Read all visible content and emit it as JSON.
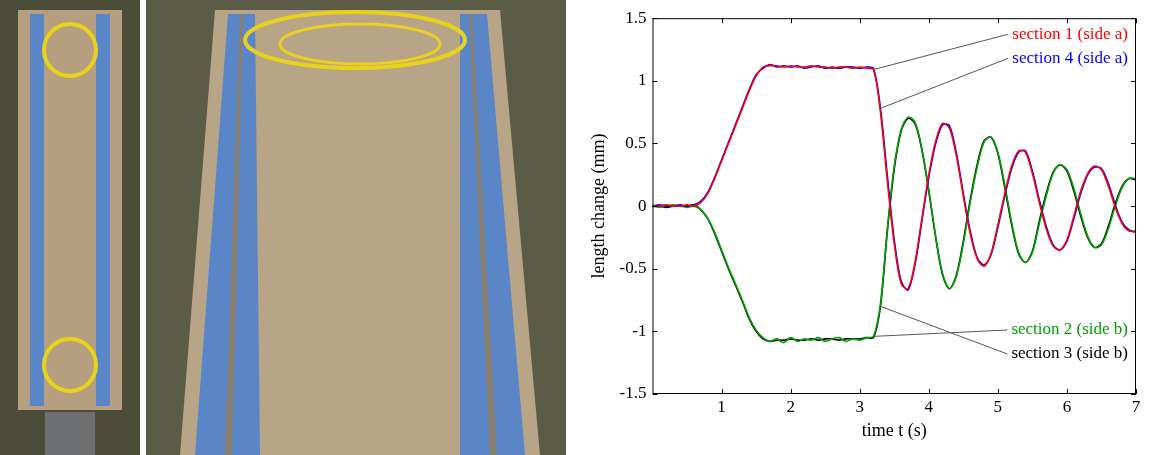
{
  "chart_data": {
    "type": "line",
    "x_label": "time t (s)",
    "y_label": "length change (mm)",
    "xlim": [
      0,
      7
    ],
    "xticks": [
      1,
      2,
      3,
      4,
      5,
      6,
      7
    ],
    "ylim": [
      -1.5,
      1.5
    ],
    "yticks": [
      -1.5,
      -1,
      -0.5,
      0,
      0.5,
      1,
      1.5
    ],
    "grid": false,
    "x": [
      0,
      0.1,
      0.2,
      0.3,
      0.4,
      0.5,
      0.6,
      0.7,
      0.8,
      0.9,
      1,
      1.1,
      1.2,
      1.3,
      1.4,
      1.5,
      1.6,
      1.7,
      1.8,
      1.9,
      2,
      2.1,
      2.2,
      2.3,
      2.4,
      2.5,
      2.6,
      2.7,
      2.8,
      2.9,
      3,
      3.1,
      3.2,
      3.3,
      3.4,
      3.5,
      3.6,
      3.7,
      3.8,
      3.9,
      4,
      4.1,
      4.2,
      4.3,
      4.4,
      4.5,
      4.6,
      4.7,
      4.8,
      4.9,
      5,
      5.1,
      5.2,
      5.3,
      5.4,
      5.5,
      5.6,
      5.7,
      5.8,
      5.9,
      6,
      6.1,
      6.2,
      6.3,
      6.4,
      6.5,
      6.6,
      6.7,
      6.8,
      6.9,
      7
    ],
    "series": [
      {
        "name": "section 1 (side a)",
        "color": "#ff0000",
        "values": [
          0,
          0,
          0.01,
          0,
          0,
          0.01,
          0,
          0.03,
          0.1,
          0.22,
          0.36,
          0.5,
          0.64,
          0.78,
          0.92,
          1.04,
          1.11,
          1.12,
          1.12,
          1.11,
          1.12,
          1.11,
          1.11,
          1.12,
          1.11,
          1.11,
          1.1,
          1.11,
          1.11,
          1.1,
          1.11,
          1.1,
          1.09,
          0.75,
          0.2,
          -0.3,
          -0.62,
          -0.66,
          -0.45,
          -0.1,
          0.25,
          0.52,
          0.66,
          0.62,
          0.4,
          0.08,
          -0.22,
          -0.42,
          -0.48,
          -0.38,
          -0.15,
          0.1,
          0.32,
          0.44,
          0.43,
          0.26,
          0.03,
          -0.18,
          -0.32,
          -0.35,
          -0.27,
          -0.08,
          0.12,
          0.26,
          0.32,
          0.29,
          0.16,
          -0.01,
          -0.14,
          -0.2,
          -0.2
        ]
      },
      {
        "name": "section 4 (side a)",
        "color": "#0000ff",
        "values": [
          0,
          0.01,
          0,
          0,
          0.01,
          0,
          0.01,
          0.04,
          0.11,
          0.23,
          0.37,
          0.51,
          0.65,
          0.79,
          0.93,
          1.05,
          1.1,
          1.13,
          1.11,
          1.12,
          1.11,
          1.12,
          1.1,
          1.11,
          1.12,
          1.1,
          1.11,
          1.1,
          1.11,
          1.11,
          1.1,
          1.11,
          1.1,
          0.78,
          0.24,
          -0.27,
          -0.6,
          -0.67,
          -0.47,
          -0.12,
          0.23,
          0.5,
          0.65,
          0.64,
          0.42,
          0.1,
          -0.2,
          -0.41,
          -0.47,
          -0.39,
          -0.17,
          0.08,
          0.3,
          0.43,
          0.44,
          0.28,
          0.05,
          -0.16,
          -0.31,
          -0.35,
          -0.28,
          -0.1,
          0.1,
          0.25,
          0.31,
          0.3,
          0.18,
          0.01,
          -0.13,
          -0.19,
          -0.21
        ]
      },
      {
        "name": "section 2 (side b)",
        "color": "#00a000",
        "values": [
          0,
          -0.01,
          0,
          0.01,
          0,
          -0.01,
          0,
          -0.03,
          -0.1,
          -0.21,
          -0.35,
          -0.49,
          -0.62,
          -0.75,
          -0.89,
          -0.99,
          -1.05,
          -1.08,
          -1.06,
          -1.09,
          -1.05,
          -1.08,
          -1.06,
          -1.07,
          -1.05,
          -1.08,
          -1.06,
          -1.05,
          -1.08,
          -1.06,
          -1.07,
          -1.05,
          -1.04,
          -0.78,
          -0.18,
          0.32,
          0.61,
          0.71,
          0.67,
          0.46,
          0.13,
          -0.24,
          -0.54,
          -0.66,
          -0.56,
          -0.3,
          0.03,
          0.31,
          0.51,
          0.55,
          0.43,
          0.17,
          -0.13,
          -0.37,
          -0.45,
          -0.37,
          -0.14,
          0.08,
          0.26,
          0.33,
          0.29,
          0.14,
          -0.06,
          -0.24,
          -0.33,
          -0.31,
          -0.18,
          0,
          0.15,
          0.22,
          0.22
        ]
      },
      {
        "name": "section 3 (side b)",
        "color": "#000000",
        "values": [
          0,
          0,
          -0.01,
          0,
          0,
          0,
          0.01,
          -0.03,
          -0.1,
          -0.22,
          -0.36,
          -0.5,
          -0.63,
          -0.76,
          -0.9,
          -1,
          -1.06,
          -1.08,
          -1.07,
          -1.07,
          -1.06,
          -1.07,
          -1.07,
          -1.06,
          -1.07,
          -1.06,
          -1.06,
          -1.07,
          -1.06,
          -1.06,
          -1.06,
          -1.05,
          -1.05,
          -0.8,
          -0.2,
          0.3,
          0.6,
          0.7,
          0.66,
          0.45,
          0.12,
          -0.25,
          -0.55,
          -0.66,
          -0.55,
          -0.28,
          0.05,
          0.33,
          0.52,
          0.55,
          0.42,
          0.15,
          -0.15,
          -0.38,
          -0.45,
          -0.36,
          -0.12,
          0.1,
          0.27,
          0.33,
          0.28,
          0.12,
          -0.08,
          -0.25,
          -0.33,
          -0.3,
          -0.16,
          0.02,
          0.16,
          0.22,
          0.21
        ]
      }
    ]
  }
}
